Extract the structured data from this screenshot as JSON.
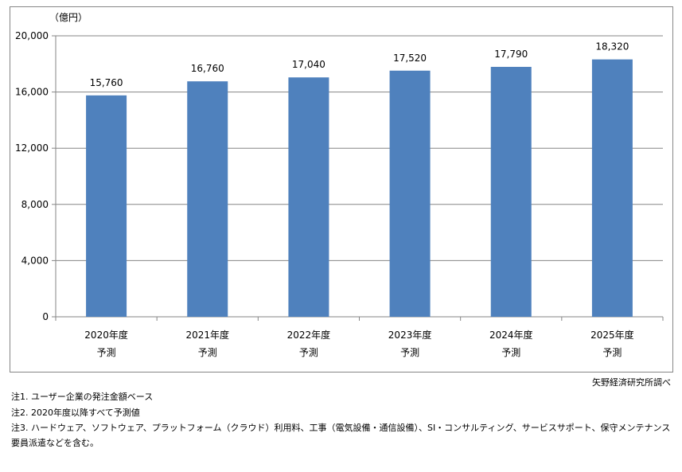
{
  "chart_data": {
    "type": "bar",
    "unit_label": "（億円）",
    "categories": [
      [
        "2020年度",
        "予測"
      ],
      [
        "2021年度",
        "予測"
      ],
      [
        "2022年度",
        "予測"
      ],
      [
        "2023年度",
        "予測"
      ],
      [
        "2024年度",
        "予測"
      ],
      [
        "2025年度",
        "予測"
      ]
    ],
    "values": [
      15760,
      16760,
      17040,
      17520,
      17790,
      18320
    ],
    "data_labels": [
      "15,760",
      "16,760",
      "17,040",
      "17,520",
      "17,790",
      "18,320"
    ],
    "yticks": [
      0,
      4000,
      8000,
      12000,
      16000,
      20000
    ],
    "ytick_labels": [
      "0",
      "4,000",
      "8,000",
      "12,000",
      "16,000",
      "20,000"
    ],
    "ylim": [
      0,
      20000
    ],
    "grid": true,
    "bar_color": "#4F81BD"
  },
  "source": "矢野経済研究所調べ",
  "notes": [
    "注1.  ユーザー企業の発注金額ベース",
    "注2.  2020年度以降すべて予測値",
    "注3.  ハードウェア、ソフトウェア、プラットフォーム（クラウド）利用料、工事（電気設備・通信設備）、SI・コンサルティング、サービスサポート、保守メンテナンス",
    "要員派遣などを含む。"
  ]
}
